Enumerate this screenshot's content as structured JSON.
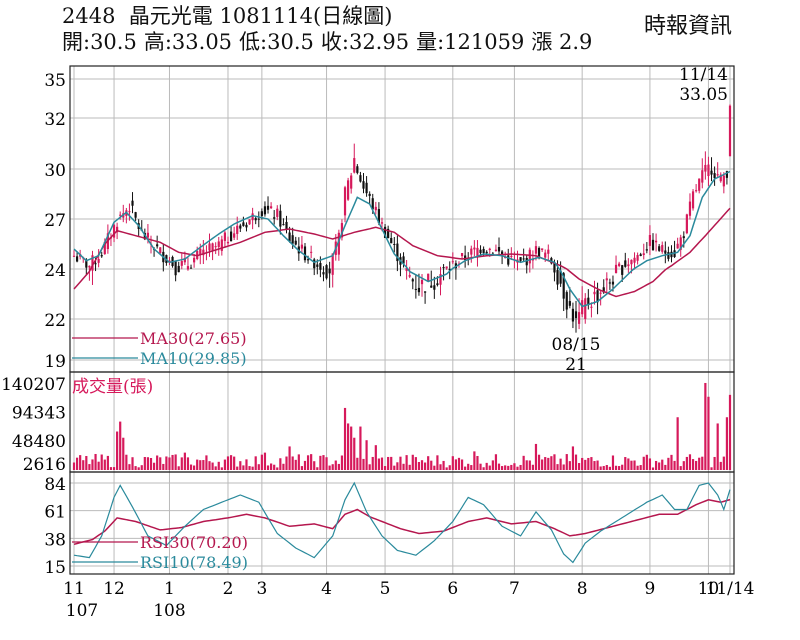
{
  "header": {
    "stock_code": "2448",
    "stock_name": "晶元光電",
    "date_title": "1081114(日線圖)",
    "publisher": "時報資訊",
    "stats": {
      "open": "開:30.5",
      "high": "高:33.05",
      "low": "低:30.5",
      "close": "收:32.95",
      "volume": "量:121059",
      "change": "漲 2.9"
    }
  },
  "colors": {
    "up": "#d6195b",
    "down": "#111111",
    "ma30": "#b5174e",
    "ma10": "#2a8a9c",
    "rsi30": "#b5174e",
    "rsi10": "#2a8a9c",
    "volume": "#d6195b",
    "grid": "#bbbbbb"
  },
  "chart_data": [
    {
      "type": "line",
      "panel": "price",
      "y_ticks": [
        "35",
        "32",
        "30",
        "27",
        "24",
        "22",
        "19"
      ],
      "y_tick_values": [
        35,
        32,
        30,
        27,
        24,
        22,
        19
      ],
      "grid": true,
      "legend": [
        {
          "label": "MA30(27.65)",
          "color": "#b5174e"
        },
        {
          "label": "MA10(29.85)",
          "color": "#2a8a9c"
        }
      ],
      "annotations": [
        {
          "label": "08/15",
          "value_label": "21"
        },
        {
          "label": "11/14",
          "value_label": "33.05"
        }
      ],
      "close_anchors": [
        [
          0,
          24.8
        ],
        [
          5,
          24.2
        ],
        [
          9,
          25.0
        ],
        [
          14,
          26.9
        ],
        [
          18,
          27.8
        ],
        [
          22,
          26.1
        ],
        [
          28,
          25.0
        ],
        [
          33,
          24.2
        ],
        [
          37,
          24.3
        ],
        [
          42,
          25.0
        ],
        [
          47,
          25.4
        ],
        [
          51,
          26.1
        ],
        [
          56,
          26.8
        ],
        [
          61,
          27.6
        ],
        [
          66,
          27.2
        ],
        [
          70,
          25.8
        ],
        [
          75,
          24.9
        ],
        [
          79,
          24.3
        ],
        [
          83,
          24.0
        ],
        [
          86,
          25.8
        ],
        [
          88,
          28.5
        ],
        [
          91,
          30.4
        ],
        [
          94,
          28.9
        ],
        [
          97,
          27.8
        ],
        [
          100,
          26.6
        ],
        [
          104,
          25.2
        ],
        [
          108,
          23.8
        ],
        [
          112,
          23.3
        ],
        [
          117,
          23.6
        ],
        [
          122,
          24.1
        ],
        [
          127,
          24.7
        ],
        [
          132,
          25.3
        ],
        [
          136,
          25.2
        ],
        [
          141,
          24.6
        ],
        [
          145,
          24.3
        ],
        [
          150,
          25.1
        ],
        [
          154,
          24.8
        ],
        [
          158,
          23.5
        ],
        [
          161,
          22.4
        ],
        [
          163,
          21.8
        ],
        [
          166,
          22.6
        ],
        [
          170,
          23.0
        ],
        [
          174,
          23.5
        ],
        [
          178,
          24.2
        ],
        [
          183,
          24.8
        ],
        [
          187,
          25.6
        ],
        [
          191,
          25.1
        ],
        [
          195,
          25.0
        ],
        [
          198,
          26.2
        ],
        [
          201,
          28.4
        ],
        [
          204,
          29.6
        ],
        [
          207,
          30.1
        ],
        [
          210,
          29.3
        ],
        [
          212,
          29.9
        ],
        [
          213,
          32.95
        ]
      ],
      "ma30_anchors": [
        [
          0,
          23.2
        ],
        [
          5,
          23.9
        ],
        [
          10,
          25.5
        ],
        [
          14,
          26.3
        ],
        [
          20,
          26.0
        ],
        [
          28,
          25.6
        ],
        [
          34,
          25.0
        ],
        [
          40,
          24.8
        ],
        [
          47,
          25.2
        ],
        [
          54,
          25.6
        ],
        [
          62,
          26.2
        ],
        [
          70,
          26.4
        ],
        [
          78,
          26.1
        ],
        [
          84,
          25.8
        ],
        [
          91,
          26.2
        ],
        [
          98,
          26.5
        ],
        [
          104,
          26.2
        ],
        [
          110,
          25.4
        ],
        [
          118,
          24.8
        ],
        [
          126,
          24.6
        ],
        [
          134,
          24.8
        ],
        [
          142,
          24.9
        ],
        [
          150,
          24.8
        ],
        [
          158,
          24.2
        ],
        [
          164,
          23.6
        ],
        [
          170,
          23.2
        ],
        [
          176,
          22.9
        ],
        [
          182,
          23.1
        ],
        [
          188,
          23.5
        ],
        [
          194,
          24.2
        ],
        [
          200,
          25.0
        ],
        [
          206,
          26.2
        ],
        [
          213,
          27.65
        ]
      ],
      "ma10_anchors": [
        [
          0,
          25.2
        ],
        [
          4,
          24.5
        ],
        [
          8,
          24.8
        ],
        [
          13,
          26.8
        ],
        [
          17,
          27.4
        ],
        [
          21,
          26.6
        ],
        [
          26,
          25.2
        ],
        [
          31,
          24.4
        ],
        [
          36,
          24.6
        ],
        [
          41,
          25.3
        ],
        [
          47,
          26.1
        ],
        [
          52,
          26.7
        ],
        [
          58,
          27.2
        ],
        [
          63,
          27.0
        ],
        [
          68,
          26.0
        ],
        [
          73,
          25.1
        ],
        [
          78,
          24.4
        ],
        [
          84,
          24.8
        ],
        [
          88,
          26.6
        ],
        [
          92,
          28.3
        ],
        [
          96,
          27.9
        ],
        [
          100,
          26.4
        ],
        [
          104,
          24.9
        ],
        [
          109,
          23.9
        ],
        [
          115,
          23.5
        ],
        [
          121,
          23.8
        ],
        [
          127,
          24.5
        ],
        [
          133,
          24.9
        ],
        [
          139,
          24.8
        ],
        [
          145,
          24.4
        ],
        [
          151,
          24.7
        ],
        [
          156,
          24.4
        ],
        [
          161,
          23.2
        ],
        [
          165,
          22.5
        ],
        [
          170,
          22.7
        ],
        [
          175,
          23.2
        ],
        [
          180,
          23.8
        ],
        [
          186,
          24.5
        ],
        [
          191,
          24.8
        ],
        [
          196,
          25.0
        ],
        [
          200,
          26.0
        ],
        [
          204,
          28.3
        ],
        [
          208,
          29.4
        ],
        [
          213,
          29.85
        ]
      ]
    },
    {
      "type": "bar",
      "panel": "volume",
      "title": "成交量(張)",
      "y_ticks": [
        "140207",
        "94343",
        "48480",
        "2616"
      ],
      "y_tick_values": [
        140207,
        94343,
        48480,
        2616
      ],
      "approx_peak_bars": [
        [
          14,
          62000
        ],
        [
          15,
          78000
        ],
        [
          16,
          52000
        ],
        [
          36,
          28000
        ],
        [
          62,
          28000
        ],
        [
          70,
          38000
        ],
        [
          88,
          100000
        ],
        [
          89,
          75000
        ],
        [
          90,
          70000
        ],
        [
          91,
          52000
        ],
        [
          93,
          70000
        ],
        [
          95,
          48000
        ],
        [
          98,
          40000
        ],
        [
          130,
          30000
        ],
        [
          150,
          42000
        ],
        [
          162,
          38000
        ],
        [
          196,
          85000
        ],
        [
          205,
          140207
        ],
        [
          206,
          118000
        ],
        [
          209,
          75000
        ],
        [
          212,
          85000
        ],
        [
          213,
          121059
        ]
      ],
      "base_volume_range": [
        4000,
        26000
      ]
    },
    {
      "type": "line",
      "panel": "rsi",
      "y_ticks": [
        "84",
        "61",
        "38",
        "15"
      ],
      "y_tick_values": [
        84,
        61,
        38,
        15
      ],
      "legend": [
        {
          "label": "RSI30(70.20)",
          "color": "#b5174e"
        },
        {
          "label": "RSI10(78.49)",
          "color": "#2a8a9c"
        }
      ],
      "rsi30_anchors": [
        [
          0,
          33
        ],
        [
          6,
          37
        ],
        [
          10,
          44
        ],
        [
          14,
          55
        ],
        [
          20,
          52
        ],
        [
          28,
          45
        ],
        [
          35,
          47
        ],
        [
          42,
          52
        ],
        [
          50,
          55
        ],
        [
          56,
          58
        ],
        [
          62,
          55
        ],
        [
          70,
          48
        ],
        [
          78,
          50
        ],
        [
          84,
          46
        ],
        [
          88,
          58
        ],
        [
          92,
          62
        ],
        [
          96,
          56
        ],
        [
          100,
          52
        ],
        [
          106,
          46
        ],
        [
          112,
          42
        ],
        [
          120,
          44
        ],
        [
          128,
          52
        ],
        [
          134,
          55
        ],
        [
          142,
          50
        ],
        [
          150,
          52
        ],
        [
          156,
          46
        ],
        [
          161,
          40
        ],
        [
          166,
          42
        ],
        [
          172,
          46
        ],
        [
          178,
          50
        ],
        [
          184,
          54
        ],
        [
          190,
          58
        ],
        [
          196,
          58
        ],
        [
          202,
          66
        ],
        [
          206,
          70
        ],
        [
          210,
          68
        ],
        [
          213,
          70.2
        ]
      ],
      "rsi10_anchors": [
        [
          0,
          24
        ],
        [
          5,
          22
        ],
        [
          9,
          40
        ],
        [
          13,
          72
        ],
        [
          15,
          82
        ],
        [
          19,
          64
        ],
        [
          24,
          40
        ],
        [
          30,
          32
        ],
        [
          36,
          48
        ],
        [
          42,
          62
        ],
        [
          48,
          68
        ],
        [
          54,
          74
        ],
        [
          60,
          68
        ],
        [
          66,
          42
        ],
        [
          72,
          30
        ],
        [
          78,
          22
        ],
        [
          84,
          40
        ],
        [
          88,
          70
        ],
        [
          91,
          84
        ],
        [
          95,
          60
        ],
        [
          100,
          40
        ],
        [
          105,
          28
        ],
        [
          111,
          24
        ],
        [
          117,
          36
        ],
        [
          123,
          52
        ],
        [
          128,
          72
        ],
        [
          133,
          66
        ],
        [
          139,
          48
        ],
        [
          145,
          40
        ],
        [
          150,
          60
        ],
        [
          155,
          45
        ],
        [
          159,
          25
        ],
        [
          162,
          18
        ],
        [
          166,
          34
        ],
        [
          171,
          44
        ],
        [
          176,
          52
        ],
        [
          181,
          60
        ],
        [
          186,
          68
        ],
        [
          191,
          74
        ],
        [
          195,
          62
        ],
        [
          199,
          62
        ],
        [
          203,
          82
        ],
        [
          206,
          84
        ],
        [
          209,
          74
        ],
        [
          211,
          62
        ],
        [
          213,
          78.49
        ]
      ]
    }
  ],
  "x_axis": {
    "labels": [
      {
        "text": "11",
        "day": 0
      },
      {
        "text": "12",
        "day": 13
      },
      {
        "text": "1",
        "day": 31
      },
      {
        "text": "2",
        "day": 50
      },
      {
        "text": "3",
        "day": 61
      },
      {
        "text": "4",
        "day": 82
      },
      {
        "text": "5",
        "day": 101
      },
      {
        "text": "6",
        "day": 123
      },
      {
        "text": "7",
        "day": 143
      },
      {
        "text": "8",
        "day": 165
      },
      {
        "text": "9",
        "day": 187
      },
      {
        "text": "10",
        "day": 206
      },
      {
        "text": "11/14",
        "day": 213
      }
    ],
    "year_labels": [
      {
        "text": "107",
        "day": 0
      },
      {
        "text": "108",
        "day": 31
      }
    ]
  }
}
